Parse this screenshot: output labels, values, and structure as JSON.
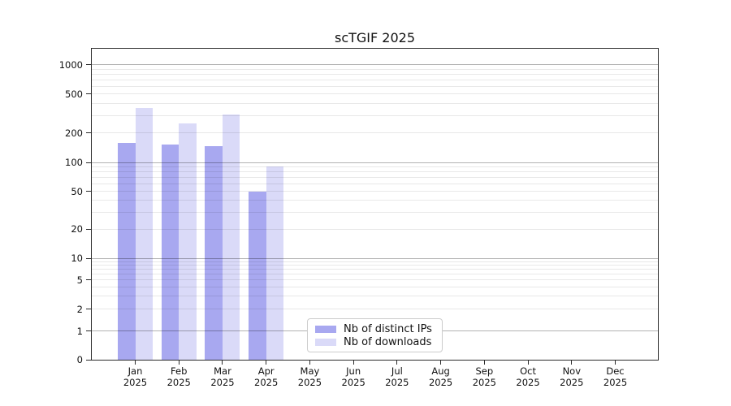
{
  "chart_data": {
    "type": "bar",
    "title": "scTGIF 2025",
    "categories": [
      "Jan",
      "Feb",
      "Mar",
      "Apr",
      "May",
      "Jun",
      "Jul",
      "Aug",
      "Sep",
      "Oct",
      "Nov",
      "Dec"
    ],
    "x_tick_year": "2025",
    "series": [
      {
        "name": "Nb of distinct IPs",
        "color": "#a8a8f0",
        "values": [
          159,
          153,
          146,
          50,
          0,
          0,
          0,
          0,
          0,
          0,
          0,
          0
        ]
      },
      {
        "name": "Nb of downloads",
        "color": "#dadaf8",
        "values": [
          358,
          252,
          311,
          90,
          0,
          0,
          0,
          0,
          0,
          0,
          0,
          0
        ]
      }
    ],
    "yscale": "symlog",
    "yticks": [
      0,
      1,
      2,
      5,
      10,
      20,
      50,
      100,
      200,
      500,
      1000
    ],
    "ylim": [
      0,
      1450
    ],
    "xlabel": "",
    "ylabel": "",
    "grid": "on",
    "legend_position": "lower center-left"
  }
}
